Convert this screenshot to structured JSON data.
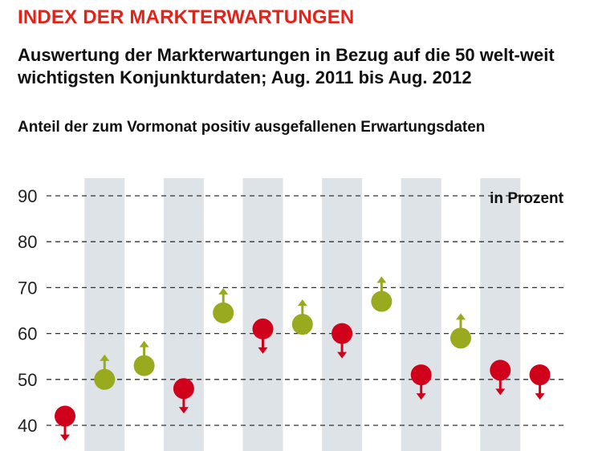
{
  "title": "INDEX DER MARKTERWARTUNGEN",
  "subtitle": "Auswertung der Markterwartungen in Bezug auf die 50 welt-weit wichtigsten Konjunkturdaten; Aug. 2011 bis Aug. 2012",
  "chart_data": {
    "type": "scatter",
    "title": "Anteil der zum Vormonat positiv ausgefallenen Erwartungsdaten",
    "unit_label": "in Prozent",
    "ylim": [
      38,
      92
    ],
    "yticks": [
      90,
      80,
      70,
      60,
      50,
      40
    ],
    "grid": true,
    "values": [
      42,
      50,
      53,
      48,
      64.5,
      61,
      62,
      60,
      67,
      51,
      59,
      52,
      51
    ],
    "direction": [
      "down",
      "up",
      "up",
      "down",
      "up",
      "down",
      "up",
      "down",
      "up",
      "down",
      "up",
      "down",
      "down"
    ],
    "colors": {
      "up": "#9aaa1e",
      "down": "#d0021b",
      "band": "#dde3e7",
      "grid": "#333333"
    }
  }
}
